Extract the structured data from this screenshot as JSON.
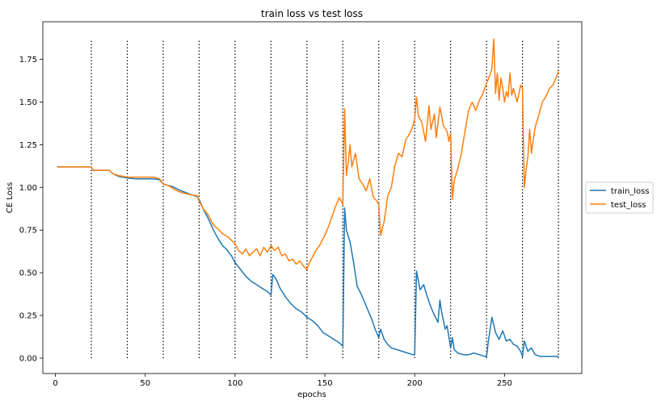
{
  "chart_data": {
    "type": "line",
    "title": "train loss vs test loss",
    "xlabel": "epochs",
    "ylabel": "CE Loss",
    "xlim": [
      -7,
      293
    ],
    "ylim": [
      -0.09,
      1.97
    ],
    "xticks": [
      0,
      50,
      100,
      150,
      200,
      250
    ],
    "yticks": [
      0.0,
      0.25,
      0.5,
      0.75,
      1.0,
      1.25,
      1.5,
      1.75
    ],
    "ytick_labels": [
      "0.00",
      "0.25",
      "0.50",
      "0.75",
      "1.00",
      "1.25",
      "1.50",
      "1.75"
    ],
    "vlines": {
      "x": [
        20,
        40,
        60,
        80,
        100,
        120,
        140,
        160,
        180,
        200,
        220,
        240,
        260,
        280
      ],
      "ymin": 0.0,
      "ymax": 1.87,
      "style": "dotted",
      "color": "#000000"
    },
    "legend": {
      "placement": "center-right-outside"
    },
    "series": [
      {
        "name": "train_loss",
        "color": "#1f77b4",
        "points": [
          [
            1,
            1.12
          ],
          [
            5,
            1.12
          ],
          [
            10,
            1.12
          ],
          [
            15,
            1.12
          ],
          [
            20,
            1.12
          ],
          [
            21,
            1.1
          ],
          [
            25,
            1.1
          ],
          [
            30,
            1.1
          ],
          [
            32,
            1.08
          ],
          [
            35,
            1.065
          ],
          [
            40,
            1.055
          ],
          [
            45,
            1.05
          ],
          [
            50,
            1.05
          ],
          [
            55,
            1.05
          ],
          [
            58,
            1.045
          ],
          [
            60,
            1.02
          ],
          [
            65,
            1.005
          ],
          [
            70,
            0.98
          ],
          [
            75,
            0.96
          ],
          [
            79,
            0.945
          ],
          [
            80,
            0.93
          ],
          [
            82,
            0.88
          ],
          [
            85,
            0.82
          ],
          [
            88,
            0.75
          ],
          [
            90,
            0.71
          ],
          [
            93,
            0.66
          ],
          [
            95,
            0.64
          ],
          [
            98,
            0.6
          ],
          [
            100,
            0.56
          ],
          [
            103,
            0.52
          ],
          [
            106,
            0.48
          ],
          [
            109,
            0.45
          ],
          [
            112,
            0.43
          ],
          [
            115,
            0.41
          ],
          [
            118,
            0.39
          ],
          [
            120,
            0.37
          ],
          [
            121,
            0.49
          ],
          [
            123,
            0.46
          ],
          [
            125,
            0.41
          ],
          [
            128,
            0.36
          ],
          [
            131,
            0.32
          ],
          [
            134,
            0.29
          ],
          [
            137,
            0.27
          ],
          [
            140,
            0.24
          ],
          [
            143,
            0.22
          ],
          [
            146,
            0.19
          ],
          [
            149,
            0.15
          ],
          [
            152,
            0.13
          ],
          [
            155,
            0.11
          ],
          [
            158,
            0.09
          ],
          [
            160,
            0.07
          ],
          [
            161,
            0.88
          ],
          [
            162,
            0.75
          ],
          [
            164,
            0.68
          ],
          [
            166,
            0.56
          ],
          [
            168,
            0.42
          ],
          [
            170,
            0.38
          ],
          [
            172,
            0.33
          ],
          [
            174,
            0.28
          ],
          [
            176,
            0.23
          ],
          [
            178,
            0.17
          ],
          [
            180,
            0.12
          ],
          [
            181,
            0.17
          ],
          [
            183,
            0.11
          ],
          [
            185,
            0.08
          ],
          [
            187,
            0.06
          ],
          [
            190,
            0.05
          ],
          [
            193,
            0.04
          ],
          [
            196,
            0.03
          ],
          [
            199,
            0.02
          ],
          [
            200,
            0.02
          ],
          [
            201,
            0.51
          ],
          [
            203,
            0.4
          ],
          [
            205,
            0.43
          ],
          [
            207,
            0.36
          ],
          [
            209,
            0.3
          ],
          [
            211,
            0.25
          ],
          [
            213,
            0.21
          ],
          [
            214,
            0.34
          ],
          [
            215,
            0.27
          ],
          [
            217,
            0.17
          ],
          [
            218,
            0.19
          ],
          [
            220,
            0.06
          ],
          [
            221,
            0.12
          ],
          [
            222,
            0.05
          ],
          [
            224,
            0.03
          ],
          [
            227,
            0.02
          ],
          [
            230,
            0.02
          ],
          [
            233,
            0.03
          ],
          [
            236,
            0.02
          ],
          [
            239,
            0.01
          ],
          [
            240,
            0.01
          ],
          [
            241,
            0.1
          ],
          [
            243,
            0.24
          ],
          [
            245,
            0.15
          ],
          [
            247,
            0.11
          ],
          [
            249,
            0.16
          ],
          [
            251,
            0.1
          ],
          [
            253,
            0.11
          ],
          [
            255,
            0.08
          ],
          [
            257,
            0.07
          ],
          [
            259,
            0.04
          ],
          [
            260,
            0.01
          ],
          [
            261,
            0.1
          ],
          [
            263,
            0.04
          ],
          [
            265,
            0.06
          ],
          [
            267,
            0.02
          ],
          [
            270,
            0.01
          ],
          [
            275,
            0.01
          ],
          [
            280,
            0.01
          ]
        ]
      },
      {
        "name": "test_loss",
        "color": "#ff7f0e",
        "points": [
          [
            1,
            1.12
          ],
          [
            5,
            1.12
          ],
          [
            10,
            1.12
          ],
          [
            15,
            1.12
          ],
          [
            20,
            1.12
          ],
          [
            21,
            1.1
          ],
          [
            25,
            1.1
          ],
          [
            30,
            1.1
          ],
          [
            32,
            1.08
          ],
          [
            35,
            1.07
          ],
          [
            40,
            1.06
          ],
          [
            45,
            1.06
          ],
          [
            50,
            1.06
          ],
          [
            55,
            1.06
          ],
          [
            58,
            1.05
          ],
          [
            60,
            1.02
          ],
          [
            63,
            1.01
          ],
          [
            66,
            0.99
          ],
          [
            70,
            0.97
          ],
          [
            74,
            0.96
          ],
          [
            79,
            0.95
          ],
          [
            80,
            0.92
          ],
          [
            82,
            0.88
          ],
          [
            85,
            0.84
          ],
          [
            88,
            0.78
          ],
          [
            90,
            0.76
          ],
          [
            93,
            0.73
          ],
          [
            96,
            0.71
          ],
          [
            98,
            0.69
          ],
          [
            100,
            0.67
          ],
          [
            102,
            0.63
          ],
          [
            104,
            0.61
          ],
          [
            106,
            0.64
          ],
          [
            108,
            0.6
          ],
          [
            110,
            0.62
          ],
          [
            112,
            0.64
          ],
          [
            114,
            0.6
          ],
          [
            116,
            0.65
          ],
          [
            118,
            0.62
          ],
          [
            120,
            0.66
          ],
          [
            122,
            0.63
          ],
          [
            124,
            0.65
          ],
          [
            126,
            0.6
          ],
          [
            128,
            0.61
          ],
          [
            130,
            0.57
          ],
          [
            132,
            0.58
          ],
          [
            134,
            0.55
          ],
          [
            136,
            0.57
          ],
          [
            138,
            0.54
          ],
          [
            140,
            0.52
          ],
          [
            141,
            0.55
          ],
          [
            143,
            0.59
          ],
          [
            145,
            0.63
          ],
          [
            147,
            0.66
          ],
          [
            150,
            0.72
          ],
          [
            152,
            0.77
          ],
          [
            154,
            0.83
          ],
          [
            156,
            0.89
          ],
          [
            158,
            0.94
          ],
          [
            160,
            0.9
          ],
          [
            161,
            1.46
          ],
          [
            162,
            1.07
          ],
          [
            163,
            1.15
          ],
          [
            164,
            1.25
          ],
          [
            165,
            1.12
          ],
          [
            167,
            1.2
          ],
          [
            169,
            1.05
          ],
          [
            171,
            1.02
          ],
          [
            173,
            0.98
          ],
          [
            175,
            1.05
          ],
          [
            177,
            0.94
          ],
          [
            179,
            0.92
          ],
          [
            180,
            0.9
          ],
          [
            181,
            0.72
          ],
          [
            183,
            0.8
          ],
          [
            185,
            0.95
          ],
          [
            187,
            1.0
          ],
          [
            189,
            1.13
          ],
          [
            191,
            1.2
          ],
          [
            193,
            1.18
          ],
          [
            195,
            1.28
          ],
          [
            197,
            1.31
          ],
          [
            199,
            1.36
          ],
          [
            200,
            1.4
          ],
          [
            201,
            1.53
          ],
          [
            202,
            1.42
          ],
          [
            204,
            1.38
          ],
          [
            206,
            1.27
          ],
          [
            208,
            1.48
          ],
          [
            209,
            1.34
          ],
          [
            211,
            1.43
          ],
          [
            212,
            1.29
          ],
          [
            214,
            1.47
          ],
          [
            216,
            1.36
          ],
          [
            218,
            1.33
          ],
          [
            219,
            1.27
          ],
          [
            220,
            1.32
          ],
          [
            221,
            0.93
          ],
          [
            222,
            1.04
          ],
          [
            224,
            1.11
          ],
          [
            226,
            1.2
          ],
          [
            228,
            1.33
          ],
          [
            230,
            1.45
          ],
          [
            232,
            1.5
          ],
          [
            234,
            1.45
          ],
          [
            236,
            1.51
          ],
          [
            238,
            1.55
          ],
          [
            240,
            1.61
          ],
          [
            242,
            1.66
          ],
          [
            243,
            1.7
          ],
          [
            244,
            1.87
          ],
          [
            245,
            1.55
          ],
          [
            246,
            1.67
          ],
          [
            247,
            1.51
          ],
          [
            248,
            1.64
          ],
          [
            249,
            1.58
          ],
          [
            250,
            1.5
          ],
          [
            251,
            1.56
          ],
          [
            252,
            1.53
          ],
          [
            253,
            1.67
          ],
          [
            254,
            1.54
          ],
          [
            255,
            1.58
          ],
          [
            257,
            1.5
          ],
          [
            259,
            1.6
          ],
          [
            260,
            1.58
          ],
          [
            261,
            1.0
          ],
          [
            262,
            1.1
          ],
          [
            263,
            1.18
          ],
          [
            264,
            1.34
          ],
          [
            265,
            1.2
          ],
          [
            267,
            1.35
          ],
          [
            269,
            1.42
          ],
          [
            271,
            1.5
          ],
          [
            273,
            1.53
          ],
          [
            275,
            1.58
          ],
          [
            277,
            1.6
          ],
          [
            279,
            1.65
          ],
          [
            280,
            1.68
          ]
        ]
      }
    ]
  }
}
